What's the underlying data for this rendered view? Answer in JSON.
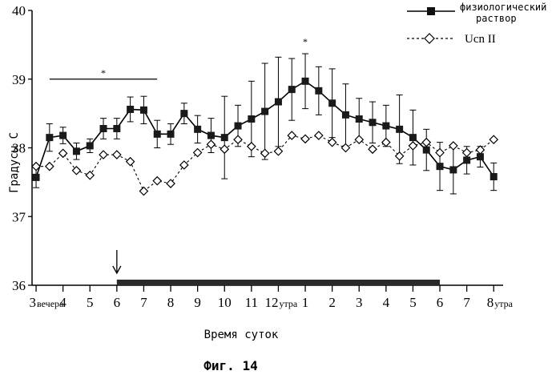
{
  "chart_data": {
    "type": "line",
    "ylabel": "Градусы С",
    "xlabel": "Время суток",
    "caption": "Фиг. 14",
    "ylim": [
      36,
      40
    ],
    "yticks": [
      "36",
      "37",
      "38",
      "39",
      "40"
    ],
    "xtick_labels": [
      {
        "main": "3",
        "suffix": "вечера"
      },
      {
        "main": "4",
        "suffix": ""
      },
      {
        "main": "5",
        "suffix": ""
      },
      {
        "main": "6",
        "suffix": ""
      },
      {
        "main": "7",
        "suffix": ""
      },
      {
        "main": "8",
        "suffix": ""
      },
      {
        "main": "9",
        "suffix": ""
      },
      {
        "main": "10",
        "suffix": ""
      },
      {
        "main": "11",
        "suffix": ""
      },
      {
        "main": "12",
        "suffix": "утра"
      },
      {
        "main": "1",
        "suffix": ""
      },
      {
        "main": "2",
        "suffix": ""
      },
      {
        "main": "3",
        "suffix": ""
      },
      {
        "main": "4",
        "suffix": ""
      },
      {
        "main": "5",
        "suffix": ""
      },
      {
        "main": "6",
        "suffix": ""
      },
      {
        "main": "7",
        "suffix": ""
      },
      {
        "main": "8",
        "suffix": "утра"
      }
    ],
    "x_hours": [
      0,
      0.5,
      1,
      1.5,
      2,
      2.5,
      3,
      3.5,
      4,
      4.5,
      5,
      5.5,
      6,
      6.5,
      7,
      7.5,
      8,
      8.5,
      9,
      9.5,
      10,
      10.5,
      11,
      11.5,
      12,
      12.5,
      13,
      13.5,
      14,
      14.5,
      15,
      15.5,
      16,
      16.5,
      17
    ],
    "series": [
      {
        "name": "физиологический раствор",
        "marker": "filled-square",
        "line": "solid",
        "values": [
          37.57,
          38.15,
          38.18,
          37.95,
          38.03,
          38.28,
          38.28,
          38.56,
          38.55,
          38.2,
          38.2,
          38.5,
          38.27,
          38.18,
          38.15,
          38.32,
          38.42,
          38.53,
          38.67,
          38.85,
          38.97,
          38.83,
          38.65,
          38.48,
          38.42,
          38.37,
          38.32,
          38.27,
          38.15,
          37.97,
          37.73,
          37.68,
          37.82,
          37.87,
          37.58
        ],
        "errors": [
          0.15,
          0.2,
          0.12,
          0.12,
          0.1,
          0.15,
          0.15,
          0.18,
          0.2,
          0.2,
          0.15,
          0.15,
          0.2,
          0.25,
          0.6,
          0.3,
          0.55,
          0.7,
          0.65,
          0.45,
          0.4,
          0.35,
          0.5,
          0.45,
          0.3,
          0.3,
          0.3,
          0.5,
          0.4,
          0.3,
          0.35,
          0.35,
          0.2,
          0.15,
          0.2
        ]
      },
      {
        "name": "Ucn II",
        "marker": "open-diamond",
        "line": "dashed",
        "values": [
          37.73,
          37.73,
          37.92,
          37.67,
          37.6,
          37.9,
          37.9,
          37.8,
          37.37,
          37.52,
          37.48,
          37.75,
          37.93,
          38.05,
          37.98,
          38.12,
          38.02,
          37.92,
          37.95,
          38.18,
          38.13,
          38.18,
          38.08,
          38.0,
          38.12,
          37.98,
          38.08,
          37.88,
          38.03,
          38.08,
          37.93,
          38.03,
          37.93,
          37.97,
          38.12
        ]
      }
    ],
    "significance": [
      {
        "label": "*",
        "x_from": 0.5,
        "x_to": 4.5,
        "y": 39.0
      },
      {
        "label": "*",
        "x_from": 10,
        "x_to": 10,
        "y": 39.45
      }
    ],
    "dark_period_bar": {
      "x_from": 3,
      "x_to": 15
    },
    "arrow_at_hour": 3,
    "legend_position": "top-right"
  }
}
